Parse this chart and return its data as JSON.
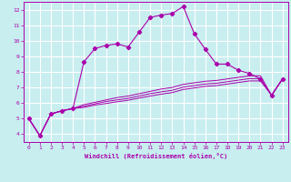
{
  "xlabel": "Windchill (Refroidissement éolien,°C)",
  "bg_color": "#c8eef0",
  "line_color": "#aa00aa",
  "grid_color": "#ffffff",
  "xlim": [
    -0.5,
    23.5
  ],
  "ylim": [
    3.5,
    12.5
  ],
  "xticks": [
    0,
    1,
    2,
    3,
    4,
    5,
    6,
    7,
    8,
    9,
    10,
    11,
    12,
    13,
    14,
    15,
    16,
    17,
    18,
    19,
    20,
    21,
    22,
    23
  ],
  "yticks": [
    4,
    5,
    6,
    7,
    8,
    9,
    10,
    11,
    12
  ],
  "main_x": [
    0,
    1,
    2,
    3,
    4,
    5,
    6,
    7,
    8,
    9,
    10,
    11,
    12,
    13,
    14,
    15,
    16,
    17,
    18,
    19,
    20,
    21,
    22,
    23
  ],
  "main_y": [
    5.0,
    3.9,
    5.3,
    5.5,
    5.65,
    8.65,
    9.5,
    9.7,
    9.8,
    9.6,
    10.55,
    11.5,
    11.65,
    11.75,
    12.2,
    10.45,
    9.45,
    8.5,
    8.5,
    8.1,
    7.9,
    7.55,
    6.5,
    7.55
  ],
  "flat1_x": [
    0,
    1,
    2,
    3,
    4,
    5,
    6,
    7,
    8,
    9,
    10,
    11,
    12,
    13,
    14,
    15,
    16,
    17,
    18,
    19,
    20,
    21,
    22,
    23
  ],
  "flat1_y": [
    5.0,
    3.9,
    5.3,
    5.5,
    5.65,
    5.9,
    6.05,
    6.2,
    6.35,
    6.45,
    6.6,
    6.75,
    6.9,
    7.0,
    7.2,
    7.3,
    7.4,
    7.45,
    7.55,
    7.65,
    7.75,
    7.75,
    6.5,
    7.55
  ],
  "flat2_x": [
    0,
    1,
    2,
    3,
    4,
    5,
    6,
    7,
    8,
    9,
    10,
    11,
    12,
    13,
    14,
    15,
    16,
    17,
    18,
    19,
    20,
    21,
    22,
    23
  ],
  "flat2_y": [
    5.0,
    3.9,
    5.3,
    5.5,
    5.65,
    5.8,
    5.95,
    6.1,
    6.2,
    6.3,
    6.45,
    6.6,
    6.72,
    6.82,
    7.02,
    7.12,
    7.22,
    7.27,
    7.37,
    7.47,
    7.57,
    7.57,
    6.5,
    7.55
  ],
  "flat3_x": [
    0,
    1,
    2,
    3,
    4,
    5,
    6,
    7,
    8,
    9,
    10,
    11,
    12,
    13,
    14,
    15,
    16,
    17,
    18,
    19,
    20,
    21,
    22,
    23
  ],
  "flat3_y": [
    5.0,
    3.9,
    5.3,
    5.5,
    5.65,
    5.72,
    5.87,
    5.97,
    6.08,
    6.18,
    6.32,
    6.45,
    6.57,
    6.67,
    6.87,
    6.97,
    7.07,
    7.12,
    7.22,
    7.32,
    7.42,
    7.42,
    6.5,
    7.55
  ]
}
